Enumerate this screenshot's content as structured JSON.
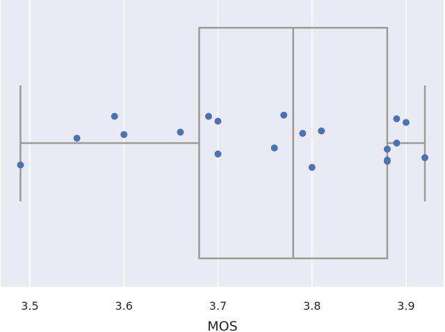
{
  "chart_data": {
    "type": "box",
    "xlabel": "MOS",
    "ylabel": "",
    "xlim": [
      3.48,
      3.94
    ],
    "xticks": [
      3.5,
      3.6,
      3.7,
      3.8,
      3.9
    ],
    "xtick_labels": [
      "3.5",
      "3.6",
      "3.7",
      "3.8",
      "3.9"
    ],
    "grid": true,
    "box": {
      "whisker_low": 3.49,
      "q1": 3.68,
      "median": 3.78,
      "q3": 3.88,
      "whisker_high": 3.92
    },
    "points": [
      {
        "x": 3.49,
        "y": 0.09
      },
      {
        "x": 3.55,
        "y": -0.02
      },
      {
        "x": 3.59,
        "y": -0.11
      },
      {
        "x": 3.6,
        "y": -0.035
      },
      {
        "x": 3.66,
        "y": -0.045
      },
      {
        "x": 3.69,
        "y": -0.11
      },
      {
        "x": 3.7,
        "y": -0.09
      },
      {
        "x": 3.7,
        "y": 0.045
      },
      {
        "x": 3.76,
        "y": 0.02
      },
      {
        "x": 3.77,
        "y": -0.115
      },
      {
        "x": 3.79,
        "y": -0.04
      },
      {
        "x": 3.8,
        "y": 0.1
      },
      {
        "x": 3.81,
        "y": -0.05
      },
      {
        "x": 3.88,
        "y": 0.025
      },
      {
        "x": 3.88,
        "y": 0.075
      },
      {
        "x": 3.88,
        "y": 0.07
      },
      {
        "x": 3.89,
        "y": -0.1
      },
      {
        "x": 3.89,
        "y": 0.0
      },
      {
        "x": 3.9,
        "y": -0.085
      },
      {
        "x": 3.92,
        "y": 0.06
      }
    ],
    "colors": {
      "background": "#eaeaf2",
      "grid": "#ffffff",
      "box_line": "#999999",
      "point": "#4c72b0"
    }
  }
}
